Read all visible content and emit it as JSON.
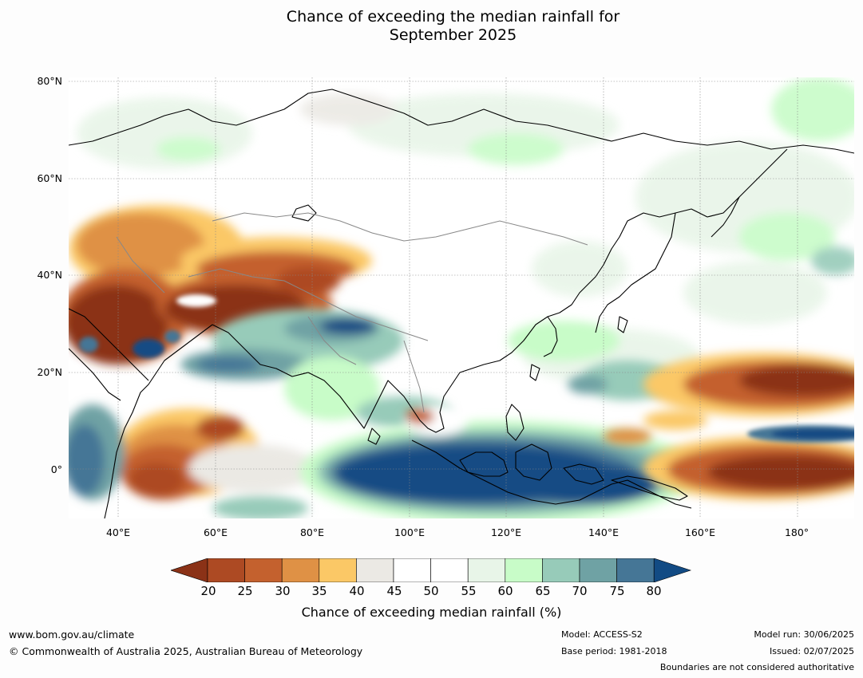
{
  "title_line1": "Chance of exceeding the median rainfall for",
  "title_line2": "September 2025",
  "lat_labels": [
    "80°N",
    "60°N",
    "40°N",
    "20°N",
    "0°"
  ],
  "lon_labels": [
    "40°E",
    "60°E",
    "80°E",
    "100°E",
    "120°E",
    "140°E",
    "160°E",
    "180°"
  ],
  "colorbar": {
    "ticks": [
      "20",
      "25",
      "30",
      "35",
      "40",
      "45",
      "50",
      "55",
      "60",
      "65",
      "70",
      "75",
      "80"
    ],
    "colors": [
      "#8b3217",
      "#ad4a23",
      "#c4612e",
      "#df9145",
      "#fbc866",
      "#ebe9e4",
      "#ffffff",
      "#ffffff",
      "#e8f5e8",
      "#c8fcc8",
      "#97cbb9",
      "#6fa2a4",
      "#457696",
      "#124b84"
    ],
    "label": "Chance of exceeding median rainfall (%)"
  },
  "footer": {
    "website": "www.bom.gov.au/climate",
    "copyright": "© Commonwealth of Australia 2025, Australian Bureau of Meteorology",
    "model": "Model: ACCESS-S2",
    "base_period": "Base period: 1981-2018",
    "model_run": "Model run: 30/06/2025",
    "issued": "Issued: 02/07/2025",
    "disclaimer": "Boundaries are not considered authoritative"
  }
}
